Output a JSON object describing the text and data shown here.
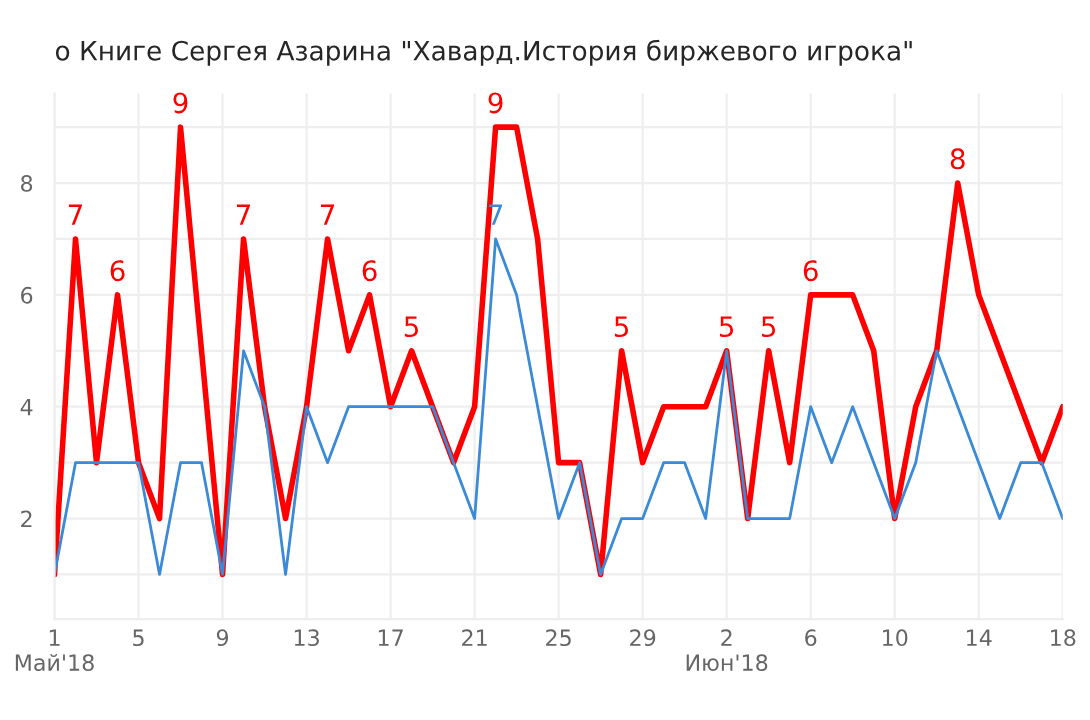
{
  "chart_data": {
    "type": "line",
    "title": "о Книге Сергея Азарина \"Хавард.История биржевого игрока\"",
    "x": [
      "2018-05-01",
      "2018-05-02",
      "2018-05-03",
      "2018-05-04",
      "2018-05-05",
      "2018-05-06",
      "2018-05-07",
      "2018-05-08",
      "2018-05-09",
      "2018-05-10",
      "2018-05-11",
      "2018-05-12",
      "2018-05-13",
      "2018-05-14",
      "2018-05-15",
      "2018-05-16",
      "2018-05-17",
      "2018-05-18",
      "2018-05-19",
      "2018-05-20",
      "2018-05-21",
      "2018-05-22",
      "2018-05-23",
      "2018-05-24",
      "2018-05-25",
      "2018-05-26",
      "2018-05-27",
      "2018-05-28",
      "2018-05-29",
      "2018-05-30",
      "2018-05-31",
      "2018-06-01",
      "2018-06-02",
      "2018-06-03",
      "2018-06-04",
      "2018-06-05",
      "2018-06-06",
      "2018-06-07",
      "2018-06-08",
      "2018-06-09",
      "2018-06-10",
      "2018-06-11",
      "2018-06-12",
      "2018-06-13",
      "2018-06-14",
      "2018-06-15",
      "2018-06-16",
      "2018-06-17",
      "2018-06-18"
    ],
    "series": [
      {
        "color": "#ff0000",
        "values": [
          1,
          7,
          3,
          6,
          3,
          2,
          9,
          5,
          1,
          7,
          4,
          2,
          4,
          7,
          5,
          6,
          4,
          5,
          4,
          3,
          4,
          9,
          9,
          7,
          3,
          3,
          1,
          5,
          3,
          4,
          4,
          4,
          5,
          2,
          5,
          3,
          6,
          6,
          6,
          5,
          2,
          4,
          5,
          8,
          6,
          5,
          4,
          3,
          4
        ],
        "value_labels": [
          null,
          "7",
          null,
          "6",
          null,
          null,
          "9",
          null,
          null,
          "7",
          null,
          null,
          null,
          "7",
          null,
          "6",
          null,
          "5",
          null,
          null,
          null,
          "9",
          null,
          null,
          null,
          null,
          null,
          "5",
          null,
          null,
          null,
          null,
          "5",
          null,
          "5",
          null,
          "6",
          null,
          null,
          null,
          null,
          null,
          null,
          "8",
          null,
          null,
          null,
          null,
          null
        ]
      },
      {
        "color": "#3a8ad8",
        "values": [
          1,
          3,
          3,
          3,
          3,
          1,
          3,
          3,
          1,
          5,
          4,
          1,
          4,
          3,
          4,
          4,
          4,
          4,
          4,
          3,
          2,
          7,
          6,
          4,
          2,
          3,
          1,
          2,
          2,
          3,
          3,
          2,
          5,
          2,
          2,
          2,
          4,
          3,
          4,
          3,
          2,
          3,
          5,
          4,
          3,
          2,
          3,
          3,
          2
        ],
        "value_labels": [
          null,
          null,
          null,
          null,
          null,
          null,
          null,
          null,
          null,
          null,
          null,
          null,
          null,
          null,
          null,
          null,
          null,
          null,
          null,
          null,
          null,
          "7",
          null,
          null,
          null,
          null,
          null,
          null,
          null,
          null,
          null,
          null,
          null,
          null,
          null,
          null,
          null,
          null,
          null,
          null,
          null,
          null,
          null,
          null,
          null,
          null,
          null,
          null,
          null
        ]
      }
    ],
    "xlim": [
      "2018-05-01",
      "2018-06-18"
    ],
    "xticks": [
      {
        "value": "2018-05-01",
        "label": "1\nМай'18"
      },
      {
        "value": "2018-05-05",
        "label": "5"
      },
      {
        "value": "2018-05-09",
        "label": "9"
      },
      {
        "value": "2018-05-13",
        "label": "13"
      },
      {
        "value": "2018-05-17",
        "label": "17"
      },
      {
        "value": "2018-05-21",
        "label": "21"
      },
      {
        "value": "2018-05-25",
        "label": "25"
      },
      {
        "value": "2018-05-29",
        "label": "29"
      },
      {
        "value": "2018-06-02",
        "label": "2\nИюн'18"
      },
      {
        "value": "2018-06-06",
        "label": "6"
      },
      {
        "value": "2018-06-10",
        "label": "10"
      },
      {
        "value": "2018-06-14",
        "label": "14"
      },
      {
        "value": "2018-06-18",
        "label": "18"
      }
    ],
    "ylim": [
      0.2,
      9.6
    ],
    "yticks": [
      {
        "value": 1,
        "label": null
      },
      2,
      {
        "value": 3,
        "label": null
      },
      4,
      {
        "value": 5,
        "label": null
      },
      6,
      {
        "value": 7,
        "label": null
      },
      8,
      {
        "value": 9,
        "label": null
      }
    ],
    "grid": true,
    "marker": "none",
    "line_style": "solid"
  }
}
